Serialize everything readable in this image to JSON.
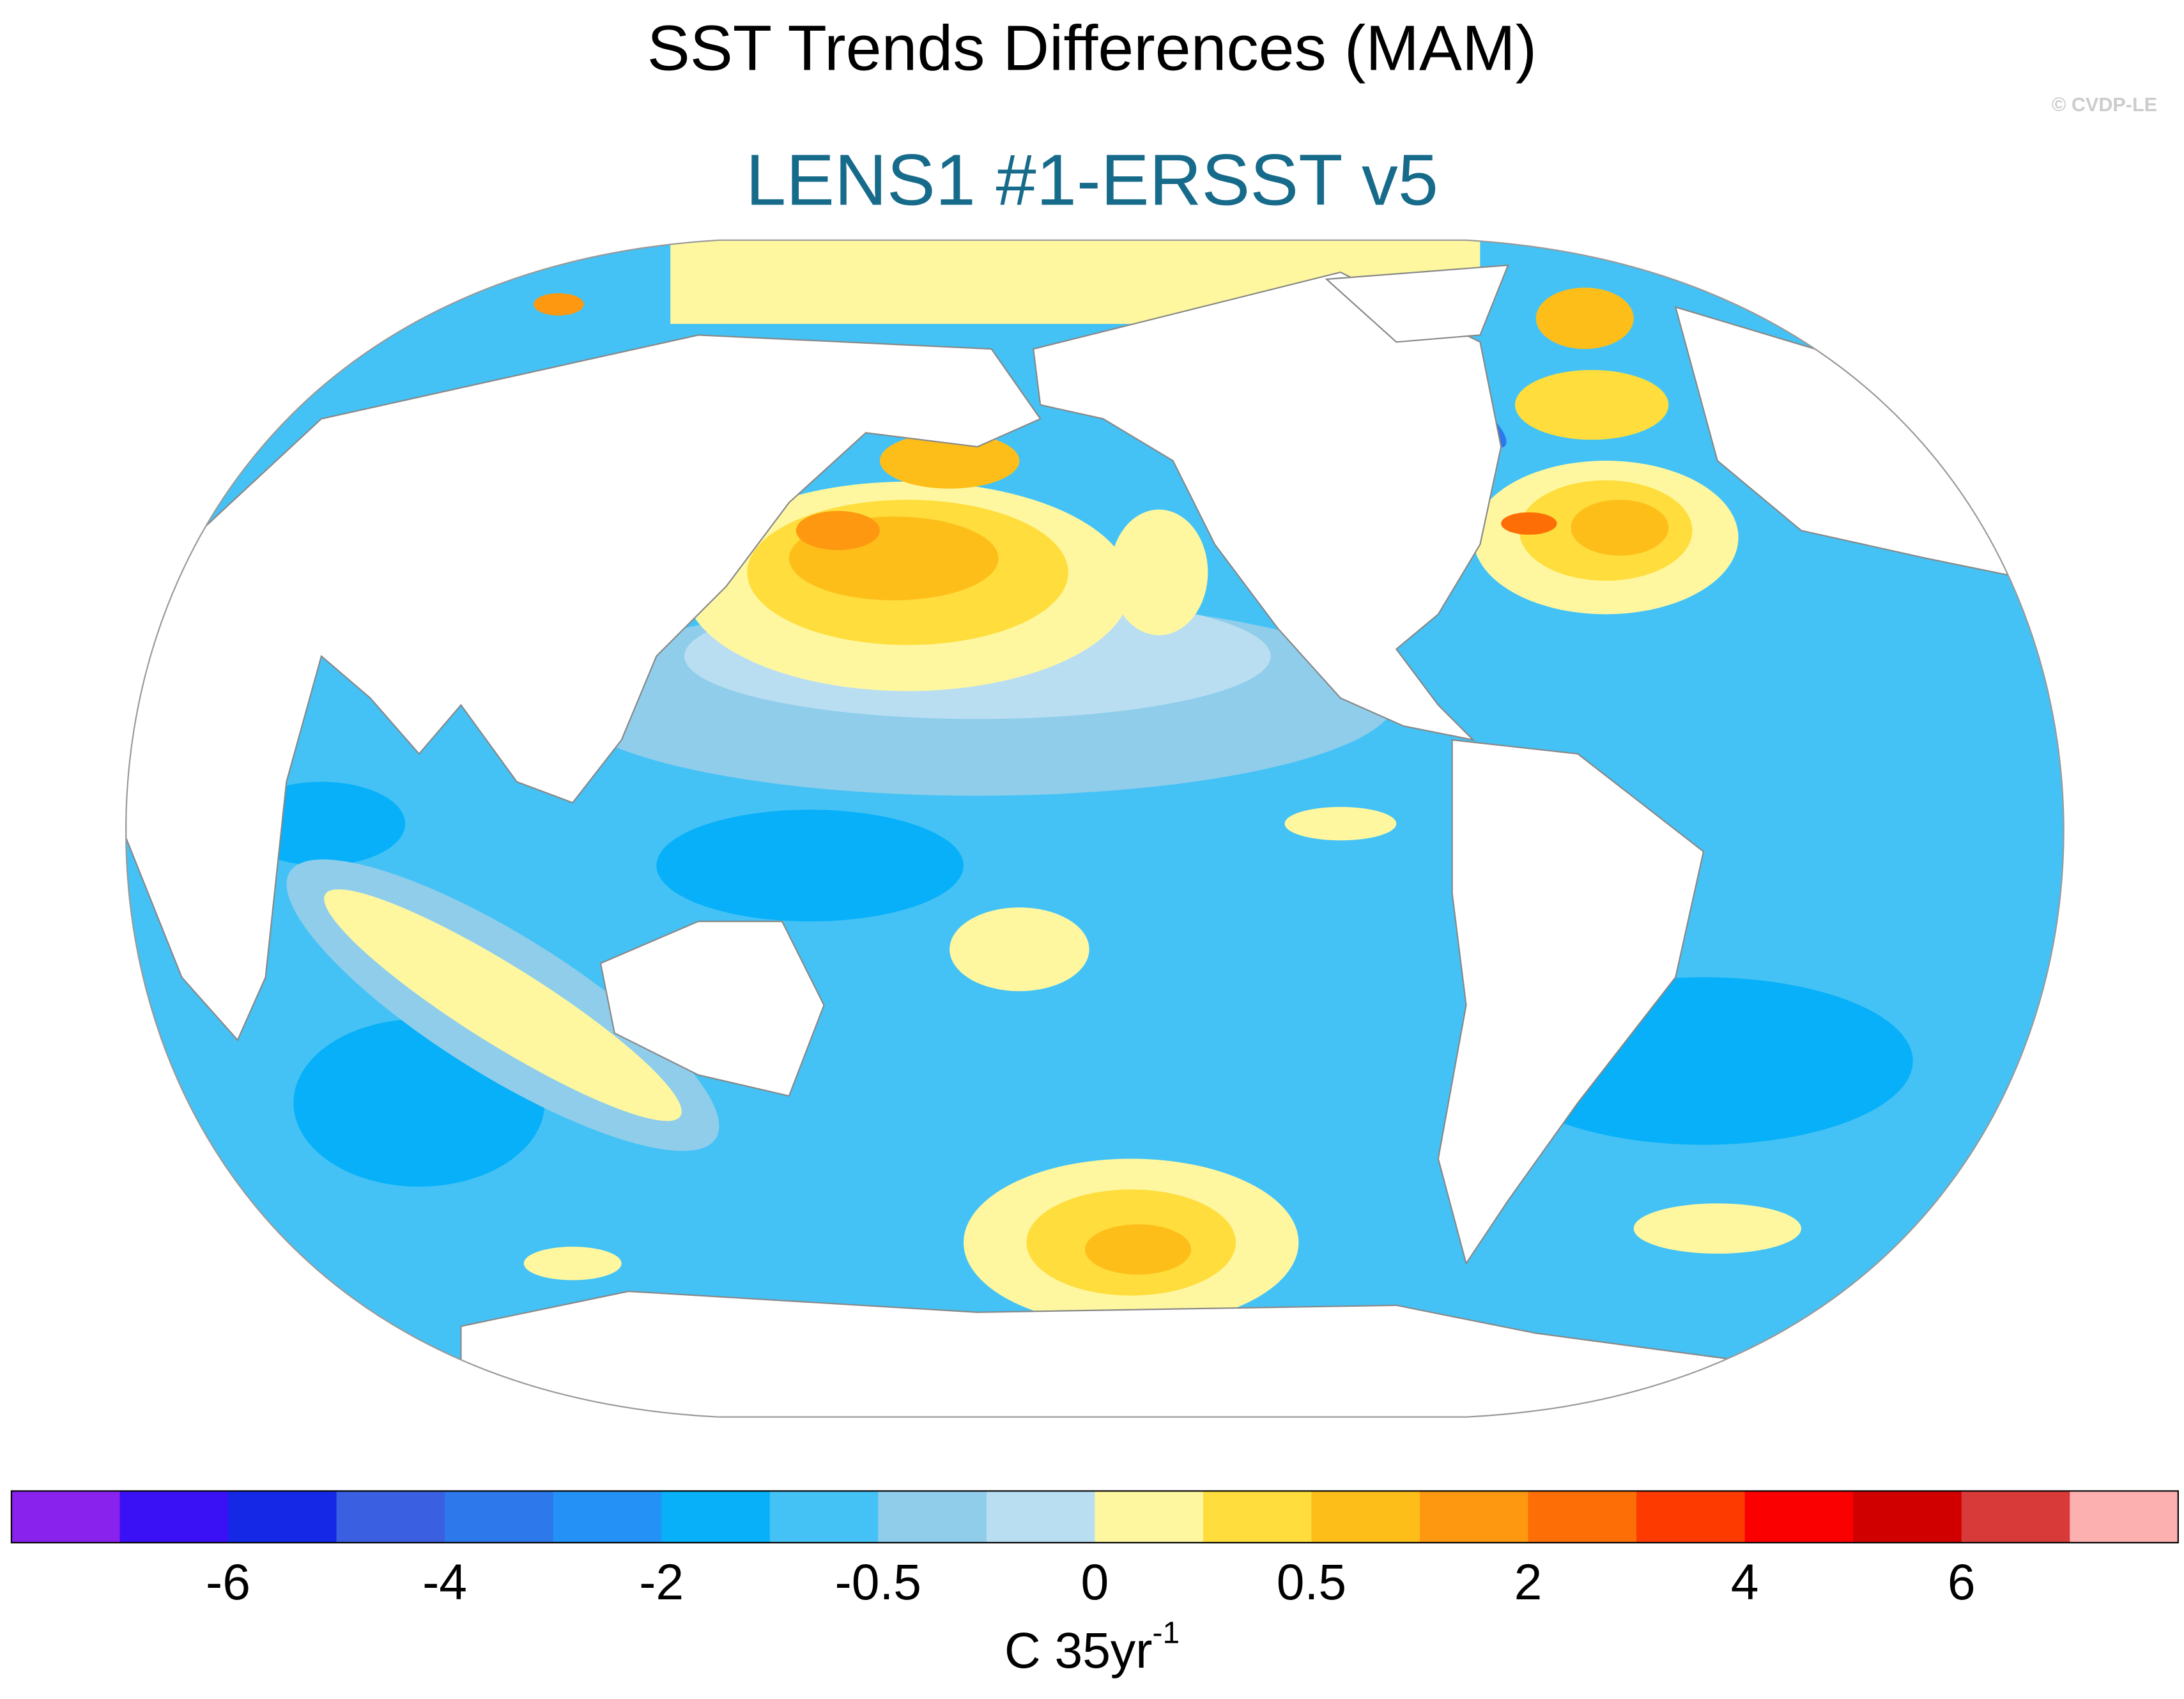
{
  "header": {
    "title": "SST Trends Differences (MAM)",
    "subtitle": "LENS1 #1-ERSST v5",
    "credit": "© CVDP-LE"
  },
  "colorbar": {
    "colors": [
      "#8a22ee",
      "#3a10f5",
      "#1428e6",
      "#3a5fe0",
      "#2d78ea",
      "#2391f5",
      "#07b0f8",
      "#44c2f5",
      "#8fcdeb",
      "#b9def2",
      "#fff7a0",
      "#fedd3c",
      "#fdbe1a",
      "#fd9810",
      "#fd6e06",
      "#fd3a00",
      "#fb0000",
      "#d10000",
      "#d83a3a",
      "#fdb0b0"
    ],
    "ticks": [
      -6,
      -4,
      -2,
      -0.5,
      0,
      0.5,
      2,
      4,
      6
    ],
    "unit": "C 35yr",
    "unit_exponent": "-1"
  }
}
